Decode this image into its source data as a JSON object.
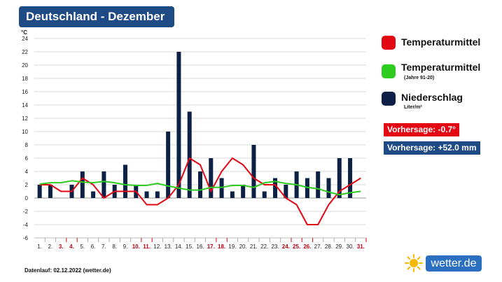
{
  "title": "Deutschland - Dezember",
  "colors": {
    "temp": "#e30613",
    "normal": "#2ecc1f",
    "precip": "#0d2147",
    "badge_red": "#e30613",
    "badge_blue": "#1e4a86",
    "title_bg": "#1e4a86"
  },
  "legend": {
    "temp_label": "Temperaturmittel",
    "normal_label": "Temperaturmittel",
    "normal_sub": "(Jahre 91-20)",
    "precip_label": "Niederschlag",
    "precip_sub": "Liter/m²"
  },
  "forecast": {
    "temp": "Vorhersage: -0.7°",
    "precip": "Vorhersage: +52.0 mm"
  },
  "source": "Datenlauf: 02.12.2022 (wetter.de)",
  "logo": {
    "text": "wetter.de",
    "icon": "sun-icon"
  },
  "chart_data": {
    "type": "bar+line",
    "y_unit": "°C",
    "ylim": [
      -6,
      24
    ],
    "yticks": [
      -6,
      -4,
      -2,
      0,
      2,
      4,
      6,
      8,
      10,
      12,
      14,
      16,
      18,
      20,
      22,
      24
    ],
    "grid": true,
    "legend_position": "right",
    "categories": [
      "1.",
      "2.",
      "3.",
      "4.",
      "5.",
      "6.",
      "7.",
      "8.",
      "9.",
      "10.",
      "11.",
      "12.",
      "13.",
      "14.",
      "15.",
      "16.",
      "17.",
      "18.",
      "19.",
      "20.",
      "21.",
      "22.",
      "23.",
      "24.",
      "25.",
      "26.",
      "27.",
      "28.",
      "29.",
      "30.",
      "31."
    ],
    "weekend_days": [
      "3.",
      "4.",
      "10.",
      "11.",
      "17.",
      "18.",
      "24.",
      "25.",
      "26.",
      "31."
    ],
    "series": [
      {
        "name": "Niederschlag",
        "kind": "bar",
        "values": [
          2,
          2,
          0,
          2,
          4,
          1,
          4,
          2,
          5,
          2,
          1,
          1,
          10,
          22,
          13,
          4,
          6,
          3,
          1,
          2,
          8,
          1,
          3,
          2,
          4,
          3,
          4,
          3,
          6,
          6,
          0
        ]
      },
      {
        "name": "Temperaturmittel",
        "kind": "line",
        "values": [
          2,
          2,
          1,
          1,
          3,
          2,
          0,
          1,
          1,
          1,
          -1,
          -1,
          0,
          2,
          6,
          5,
          1,
          4,
          6,
          5,
          3,
          2,
          2,
          0,
          -1,
          -4,
          -4,
          -1,
          1,
          2,
          3
        ]
      },
      {
        "name": "Temperaturmittel (Jahre 91-20)",
        "kind": "line",
        "values": [
          2.1,
          2.3,
          2.3,
          2.6,
          2.4,
          2.3,
          2.5,
          2.3,
          2.0,
          1.9,
          1.9,
          2.2,
          1.8,
          1.5,
          1.2,
          1.2,
          1.6,
          1.6,
          1.9,
          1.9,
          1.6,
          2.3,
          2.5,
          2.2,
          2.0,
          1.6,
          1.4,
          0.9,
          0.5,
          0.8,
          1.0
        ]
      }
    ]
  }
}
